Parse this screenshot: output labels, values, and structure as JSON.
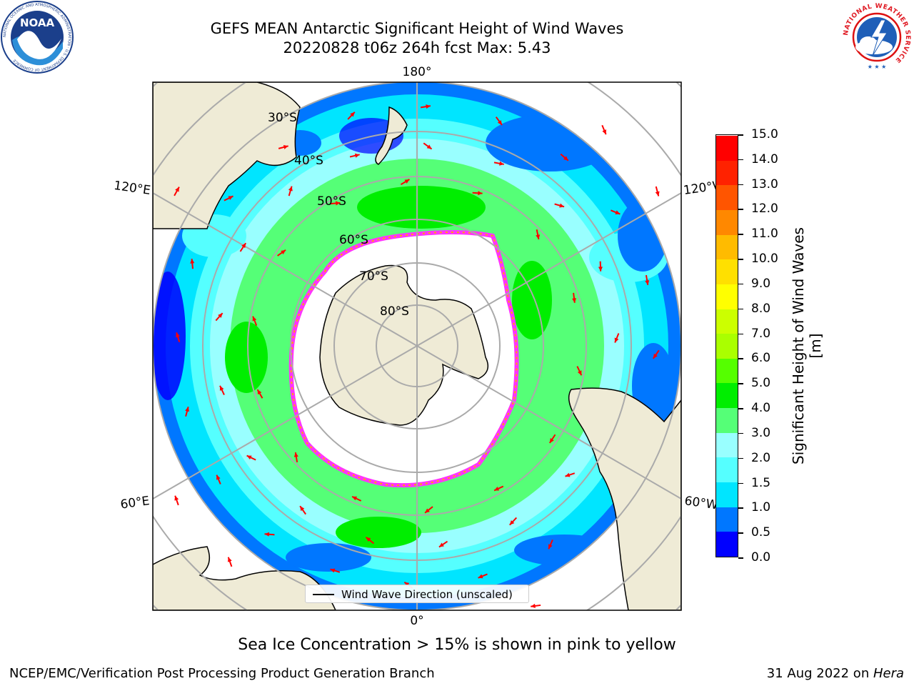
{
  "header": {
    "title_line1": "GEFS MEAN Antarctic Significant Height of Wind Waves",
    "title_line2": "20220828 t06z 264h fcst   Max: 5.43"
  },
  "logos": {
    "noaa_text": "NOAA",
    "noaa_ring_text": "NATIONAL OCEANIC AND ATMOSPHERIC ADMINISTRATION · U.S. DEPARTMENT OF COMMERCE",
    "nws_ring_text": "NATIONAL WEATHER SERVICE"
  },
  "map": {
    "projection": "south-polar stereographic",
    "longitude_labels": {
      "top": "180°",
      "bottom": "0°",
      "upper_left": "120°E",
      "upper_right": "120°W",
      "lower_left": "60°E",
      "lower_right": "60°W"
    },
    "latitude_labels": [
      "30°S",
      "40°S",
      "50°S",
      "60°S",
      "70°S",
      "80°S"
    ],
    "legend_label": "Wind Wave Direction (unscaled)",
    "arrow_color": "#ff0000",
    "land_color": "#efebd6",
    "sea_ice_colors": [
      "#ff33ff",
      "#ffaa00",
      "#ffff66"
    ]
  },
  "colorbar": {
    "label": "Significant Height of Wind Waves [m]",
    "ticks": [
      "0.0",
      "0.5",
      "1.0",
      "1.5",
      "2.0",
      "3.0",
      "4.0",
      "5.0",
      "6.0",
      "7.0",
      "8.0",
      "9.0",
      "10.0",
      "11.0",
      "12.0",
      "13.0",
      "14.0",
      "15.0"
    ],
    "colors": [
      "#0000ff",
      "#0077ff",
      "#00e5ff",
      "#55ffff",
      "#99ffff",
      "#55ff77",
      "#00ee00",
      "#55ff00",
      "#aaff00",
      "#ccff00",
      "#ffff00",
      "#ffe000",
      "#ffbb00",
      "#ff8800",
      "#ff5500",
      "#ff2200",
      "#ff0000"
    ]
  },
  "footer": {
    "subtitle": "Sea Ice Concentration > 15% is shown in pink to yellow",
    "left": "NCEP/EMC/Verification Post Processing Product Generation Branch",
    "right_date": "31 Aug 2022 on ",
    "right_machine": "Hera"
  }
}
